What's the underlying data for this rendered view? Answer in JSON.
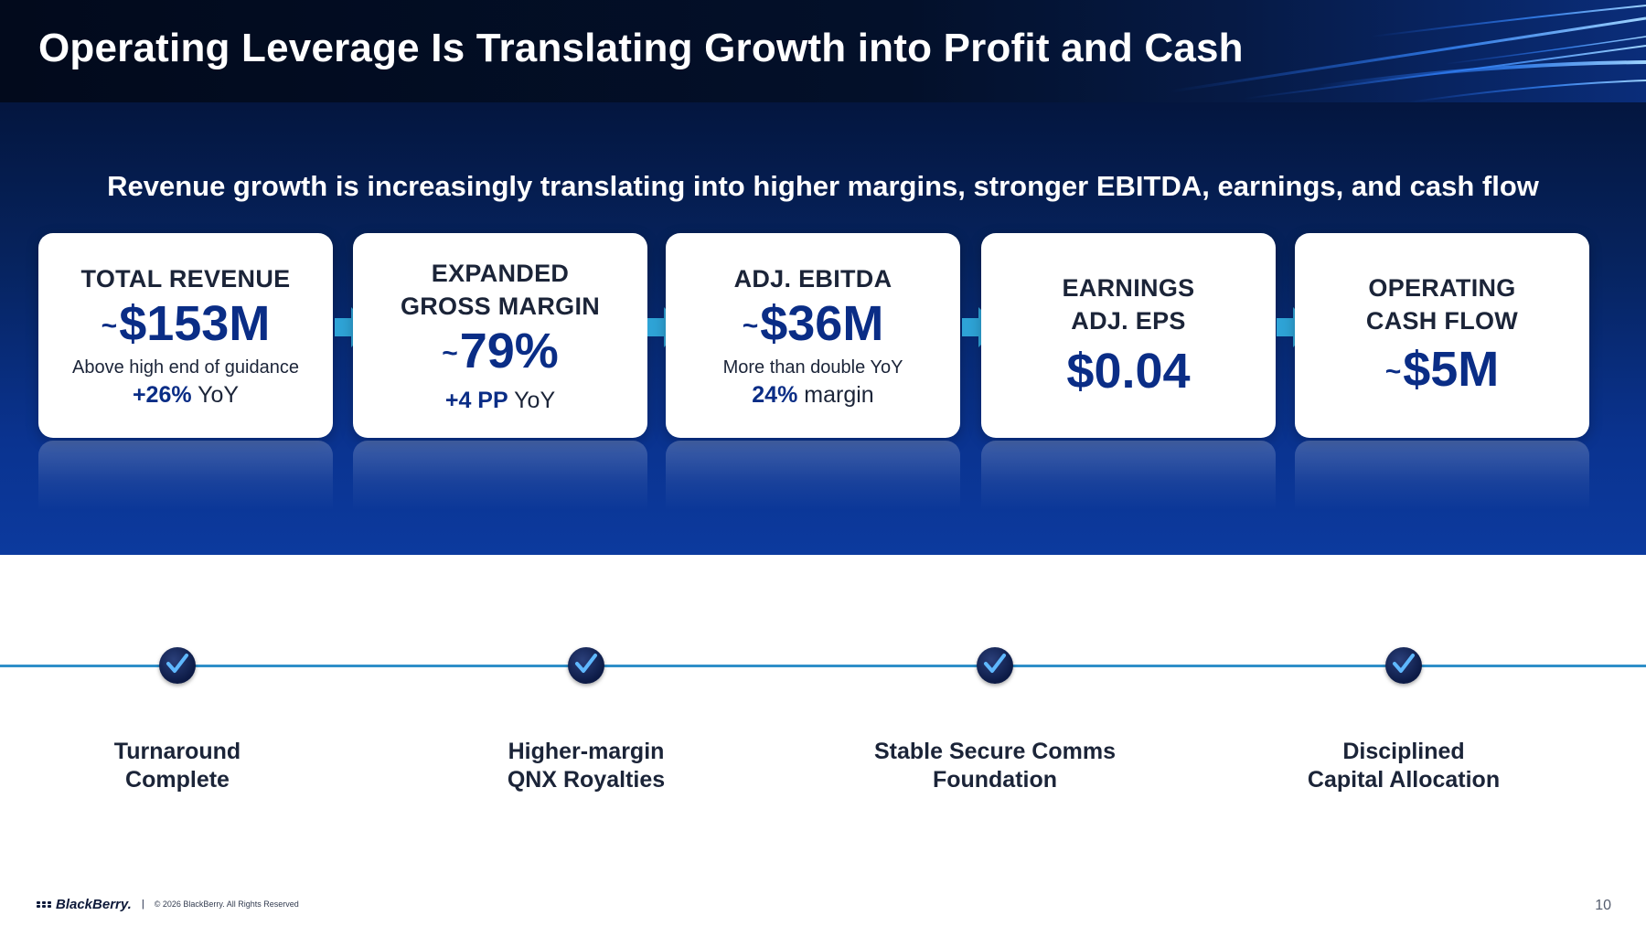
{
  "slide": {
    "title": "Operating Leverage Is Translating Growth into Profit and Cash",
    "subtitle": "Revenue growth is increasingly translating into higher margins, stronger EBITDA, earnings, and cash flow",
    "page_number": "10"
  },
  "cards": [
    {
      "title": "TOTAL REVENUE",
      "tilde": "~",
      "value": "$153M",
      "desc": "Above high end of guidance",
      "delta_bold": "+26%",
      "delta_rest": " YoY"
    },
    {
      "title_line1": "EXPANDED",
      "title_line2": "GROSS MARGIN",
      "tilde": "~",
      "value": "79%",
      "delta_bold": "+4 PP",
      "delta_rest": " YoY"
    },
    {
      "title": "ADJ. EBITDA",
      "tilde": "~",
      "value": "$36M",
      "desc": "More than double YoY",
      "delta_bold": "24%",
      "delta_rest": " margin"
    },
    {
      "title_line1": "EARNINGS",
      "title_line2": "ADJ. EPS",
      "value": "$0.04"
    },
    {
      "title_line1": "OPERATING",
      "title_line2": "CASH FLOW",
      "tilde": "~",
      "value": "$5M"
    }
  ],
  "milestones": [
    {
      "line1": "Turnaround",
      "line2": "Complete"
    },
    {
      "line1": "Higher-margin",
      "line2": "QNX Royalties"
    },
    {
      "line1": "Stable Secure Comms",
      "line2": "Foundation"
    },
    {
      "line1": "Disciplined",
      "line2": "Capital Allocation"
    }
  ],
  "footer": {
    "brand": "BlackBerry.",
    "separator": "|",
    "copyright": "© 2026 BlackBerry. All Rights Reserved"
  },
  "colors": {
    "accent_navy": "#0a2d86",
    "arrow_cyan": "#2ea3d6",
    "timeline_blue": "#2f8fc9"
  }
}
